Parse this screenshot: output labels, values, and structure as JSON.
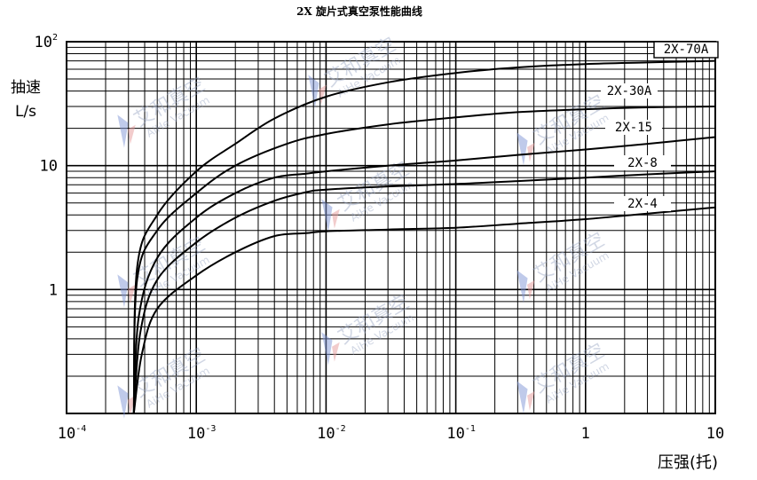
{
  "chart_data": {
    "type": "line",
    "title": "2X 旋片式真空泵性能曲线",
    "ylabel_line1": "抽速",
    "ylabel_line2": "L/s",
    "xlabel": "压强(托)",
    "x_scale": "log",
    "y_scale": "log",
    "xlim": [
      0.0001,
      10
    ],
    "ylim": [
      0.1,
      100
    ],
    "grid": true,
    "x_ticks": [
      {
        "value": 0.0001,
        "base": "10",
        "exp": "-4"
      },
      {
        "value": 0.001,
        "base": "10",
        "exp": "-3"
      },
      {
        "value": 0.01,
        "base": "10",
        "exp": "-2"
      },
      {
        "value": 0.1,
        "base": "10",
        "exp": "-1"
      },
      {
        "value": 1,
        "base": "1",
        "exp": ""
      },
      {
        "value": 10,
        "base": "10",
        "exp": ""
      }
    ],
    "y_ticks": [
      {
        "value": 1,
        "base": "1",
        "exp": ""
      },
      {
        "value": 10,
        "base": "10",
        "exp": ""
      },
      {
        "value": 100,
        "base": "10",
        "exp": "2"
      }
    ],
    "series": [
      {
        "name": "2X-70A",
        "x": [
          0.00033,
          0.00035,
          0.0005,
          0.001,
          0.002,
          0.004,
          0.01,
          0.03,
          0.1,
          0.3,
          1,
          3,
          10
        ],
        "y": [
          0.1,
          1.5,
          4,
          9,
          15,
          24,
          36,
          47,
          56,
          62,
          66,
          68,
          70
        ]
      },
      {
        "name": "2X-30A",
        "x": [
          0.00033,
          0.00035,
          0.0005,
          0.001,
          0.002,
          0.005,
          0.01,
          0.03,
          0.1,
          0.3,
          1,
          3,
          10
        ],
        "y": [
          0.1,
          1.2,
          3,
          6,
          10,
          15,
          18,
          21.5,
          24.5,
          27,
          28.5,
          29.5,
          30
        ]
      },
      {
        "name": "2X-15",
        "x": [
          0.00033,
          0.00036,
          0.0005,
          0.001,
          0.002,
          0.004,
          0.007,
          0.01,
          0.03,
          0.1,
          0.3,
          1,
          3,
          10
        ],
        "y": [
          0.1,
          0.6,
          1.8,
          3.8,
          6,
          8,
          8.6,
          9,
          10,
          11,
          12.2,
          13.5,
          15,
          17
        ]
      },
      {
        "name": "2X-8",
        "x": [
          0.00033,
          0.00037,
          0.0005,
          0.001,
          0.002,
          0.004,
          0.007,
          0.01,
          0.03,
          0.1,
          0.3,
          1,
          3,
          10
        ],
        "y": [
          0.1,
          0.45,
          1.2,
          2.4,
          3.8,
          5.2,
          6.1,
          6.4,
          6.8,
          7.1,
          7.5,
          8.0,
          8.5,
          9.0
        ]
      },
      {
        "name": "2X-4",
        "x": [
          0.00033,
          0.00038,
          0.0005,
          0.001,
          0.002,
          0.004,
          0.007,
          0.01,
          0.03,
          0.1,
          0.3,
          1,
          3,
          10
        ],
        "y": [
          0.1,
          0.3,
          0.7,
          1.3,
          2.0,
          2.7,
          2.85,
          2.95,
          3.05,
          3.15,
          3.4,
          3.7,
          4.1,
          4.6
        ]
      }
    ]
  },
  "watermark": {
    "text": "艾和真空",
    "sub": "AiHe Vacuum",
    "colors": {
      "triangle_blue": "#7f95d6",
      "triangle_red": "#e69a9a"
    }
  }
}
